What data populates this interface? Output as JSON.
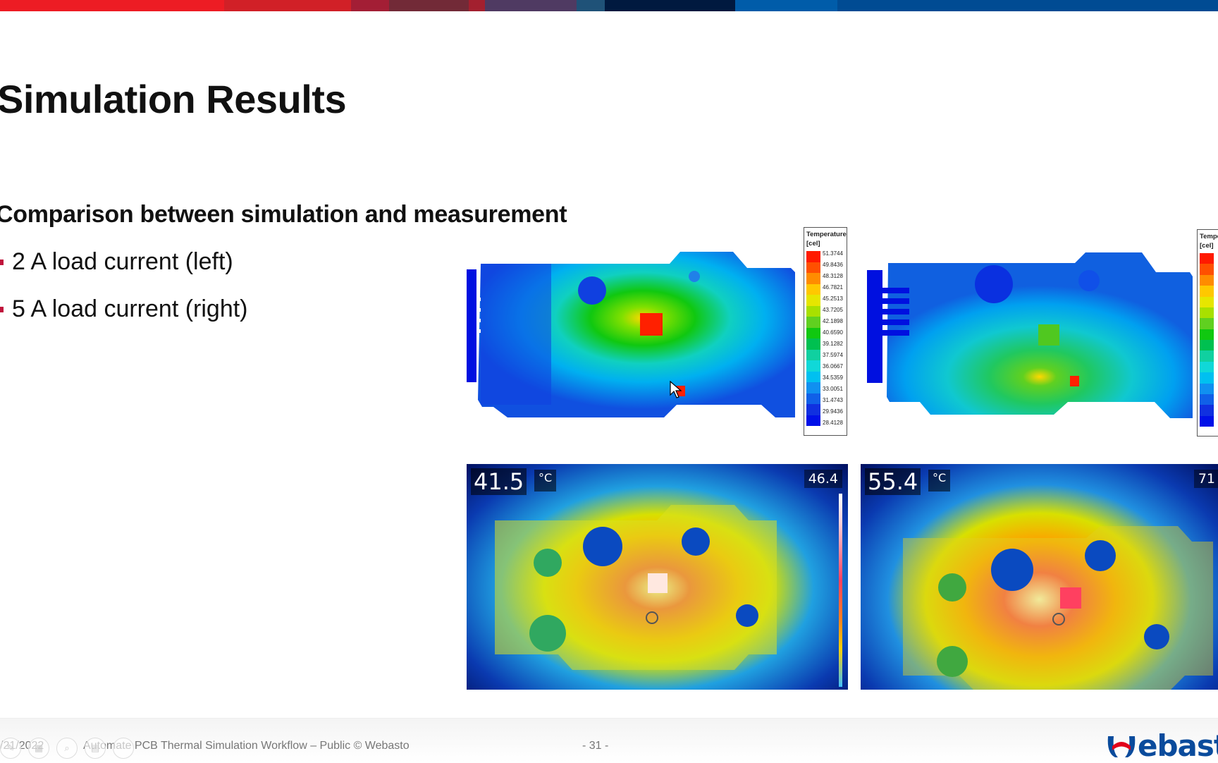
{
  "slide": {
    "title": "Simulation Results",
    "subheading": "Comparison between simulation and measurement",
    "bullets": [
      {
        "label": "2 A load current (left)"
      },
      {
        "label": "5 A load current (right)"
      }
    ],
    "accent_colors": {
      "title_bar": [
        "#ed1c24",
        "#d12027",
        "#a31e35",
        "#722a37",
        "#a3202f",
        "#4f3a62",
        "#1f5278",
        "#00193f",
        "#005ca9",
        "#004b93"
      ],
      "bullet": "#c0143c",
      "brand_blue": "#0a4b9c",
      "brand_red": "#e2001a"
    }
  },
  "simulation_left": {
    "legend_title": "Temperature",
    "legend_unit": "[cel]",
    "legend_values": [
      "51.3744",
      "49.8436",
      "48.3128",
      "46.7821",
      "45.2513",
      "43.7205",
      "42.1898",
      "40.6590",
      "39.1282",
      "37.5974",
      "36.0667",
      "34.5359",
      "33.0051",
      "31.4743",
      "29.9436",
      "28.4128"
    ],
    "legend_colors": [
      "#ff1a00",
      "#ff5000",
      "#ff8c00",
      "#ffc800",
      "#e6e600",
      "#a8e000",
      "#60d020",
      "#10c810",
      "#00c050",
      "#10d0a0",
      "#10d8d8",
      "#00c0f0",
      "#1090f0",
      "#1060e8",
      "#1030e0",
      "#0010e8"
    ]
  },
  "simulation_right": {
    "legend_title": "Temperature",
    "legend_unit": "[cel]"
  },
  "thermal_left": {
    "spot_temp": "41.5",
    "unit": "°C",
    "max_temp": "46.4"
  },
  "thermal_right": {
    "spot_temp": "55.4",
    "unit": "°C",
    "max_temp": "71"
  },
  "footer": {
    "date": "/21/2022",
    "text": "Automate PCB Thermal Simulation Workflow – Public © Webasto",
    "page_number": "- 31 -",
    "logo_text": "ebasto"
  },
  "presenter_controls": [
    {
      "icon": "pen-icon",
      "glyph": "✎"
    },
    {
      "icon": "slides-icon",
      "glyph": "▦"
    },
    {
      "icon": "zoom-icon",
      "glyph": "⌕"
    },
    {
      "icon": "subtitles-icon",
      "glyph": "▤"
    },
    {
      "icon": "more-icon",
      "glyph": "⋯"
    }
  ]
}
